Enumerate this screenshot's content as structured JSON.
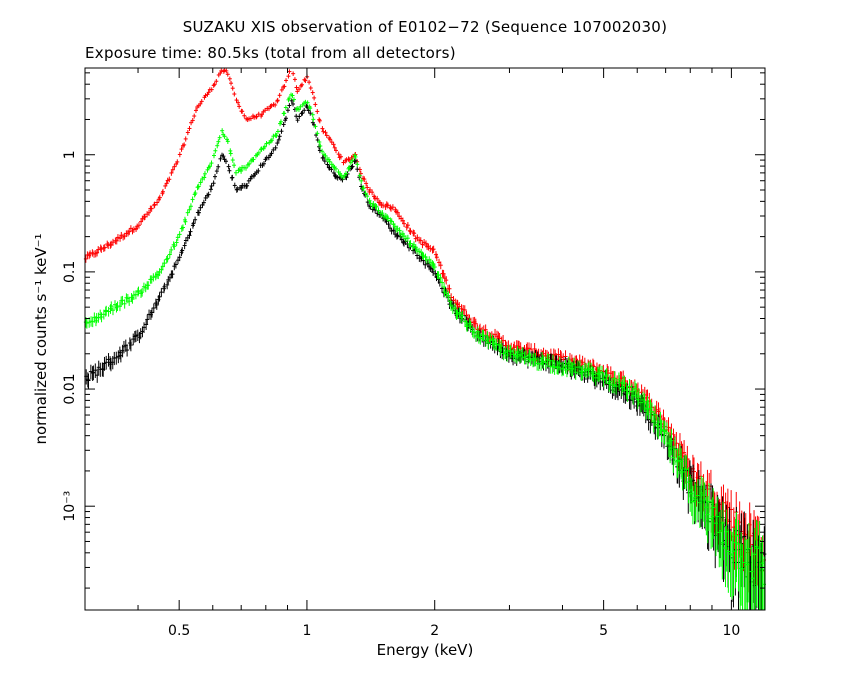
{
  "chart_data": {
    "type": "scatter",
    "title": "SUZAKU XIS observation of E0102−72 (Sequence 107002030)",
    "subtitle": "Exposure time: 80.5ks (total from all detectors)",
    "xlabel": "Energy (keV)",
    "ylabel": "normalized counts s⁻¹ keV⁻¹",
    "xscale": "log",
    "yscale": "log",
    "xlim": [
      0.3,
      12
    ],
    "ylim": [
      0.00013,
      5.5
    ],
    "x_ticks": [
      {
        "value": 0.5,
        "label": "0.5"
      },
      {
        "value": 1,
        "label": "1"
      },
      {
        "value": 2,
        "label": "2"
      },
      {
        "value": 5,
        "label": "5"
      },
      {
        "value": 10,
        "label": "10"
      }
    ],
    "y_ticks": [
      {
        "value": 1,
        "label": "1"
      },
      {
        "value": 0.1,
        "label": "0.1"
      },
      {
        "value": 0.01,
        "label": "0.01"
      },
      {
        "value": 0.001,
        "label": "10⁻³"
      }
    ],
    "series": [
      {
        "color": "#ff0000",
        "x": [
          0.3,
          0.35,
          0.4,
          0.45,
          0.5,
          0.55,
          0.6,
          0.63,
          0.65,
          0.68,
          0.72,
          0.78,
          0.85,
          0.9,
          0.92,
          0.95,
          1.0,
          1.03,
          1.08,
          1.15,
          1.22,
          1.3,
          1.35,
          1.4,
          1.5,
          1.6,
          1.8,
          1.9,
          2.0,
          2.2,
          2.5,
          3.0,
          4.0,
          5.0,
          6.0,
          7.0,
          8.0,
          10.0,
          12.0
        ],
        "y": [
          0.13,
          0.18,
          0.25,
          0.42,
          0.95,
          2.5,
          3.8,
          5.3,
          5.0,
          3.0,
          2.0,
          2.2,
          2.8,
          4.5,
          5.7,
          3.5,
          4.6,
          3.5,
          1.7,
          1.25,
          0.85,
          1.0,
          0.65,
          0.5,
          0.38,
          0.35,
          0.2,
          0.17,
          0.15,
          0.06,
          0.035,
          0.023,
          0.018,
          0.014,
          0.01,
          0.005,
          0.002,
          0.0008,
          0.0004
        ]
      },
      {
        "color": "#000000",
        "x": [
          0.3,
          0.35,
          0.4,
          0.45,
          0.5,
          0.55,
          0.6,
          0.63,
          0.65,
          0.68,
          0.72,
          0.78,
          0.85,
          0.9,
          0.92,
          0.95,
          1.0,
          1.03,
          1.08,
          1.15,
          1.22,
          1.3,
          1.35,
          1.4,
          1.5,
          1.6,
          1.8,
          1.9,
          2.0,
          2.2,
          2.5,
          3.0,
          4.0,
          5.0,
          6.0,
          7.0,
          8.0,
          10.0,
          12.0
        ],
        "y": [
          0.012,
          0.018,
          0.028,
          0.06,
          0.13,
          0.3,
          0.55,
          1.0,
          0.85,
          0.5,
          0.55,
          0.8,
          1.2,
          2.3,
          3.0,
          2.0,
          2.6,
          2.0,
          1.0,
          0.7,
          0.6,
          0.9,
          0.5,
          0.38,
          0.3,
          0.22,
          0.15,
          0.12,
          0.1,
          0.05,
          0.03,
          0.02,
          0.016,
          0.012,
          0.008,
          0.004,
          0.0015,
          0.0005,
          0.0003
        ]
      },
      {
        "color": "#00ff00",
        "x": [
          0.3,
          0.35,
          0.4,
          0.45,
          0.5,
          0.55,
          0.6,
          0.63,
          0.65,
          0.68,
          0.72,
          0.78,
          0.85,
          0.9,
          0.92,
          0.95,
          1.0,
          1.03,
          1.08,
          1.15,
          1.22,
          1.3,
          1.35,
          1.4,
          1.5,
          1.6,
          1.8,
          1.9,
          2.0,
          2.2,
          2.5,
          3.0,
          4.0,
          5.0,
          6.0,
          7.0,
          8.0,
          10.0,
          12.0
        ],
        "y": [
          0.035,
          0.05,
          0.065,
          0.1,
          0.2,
          0.5,
          0.9,
          1.6,
          1.3,
          0.7,
          0.8,
          1.1,
          1.5,
          2.8,
          3.3,
          2.4,
          2.9,
          2.2,
          1.1,
          0.8,
          0.65,
          1.0,
          0.55,
          0.4,
          0.32,
          0.25,
          0.16,
          0.13,
          0.11,
          0.05,
          0.03,
          0.02,
          0.016,
          0.013,
          0.009,
          0.004,
          0.0015,
          0.0005,
          0.0003
        ]
      }
    ]
  }
}
